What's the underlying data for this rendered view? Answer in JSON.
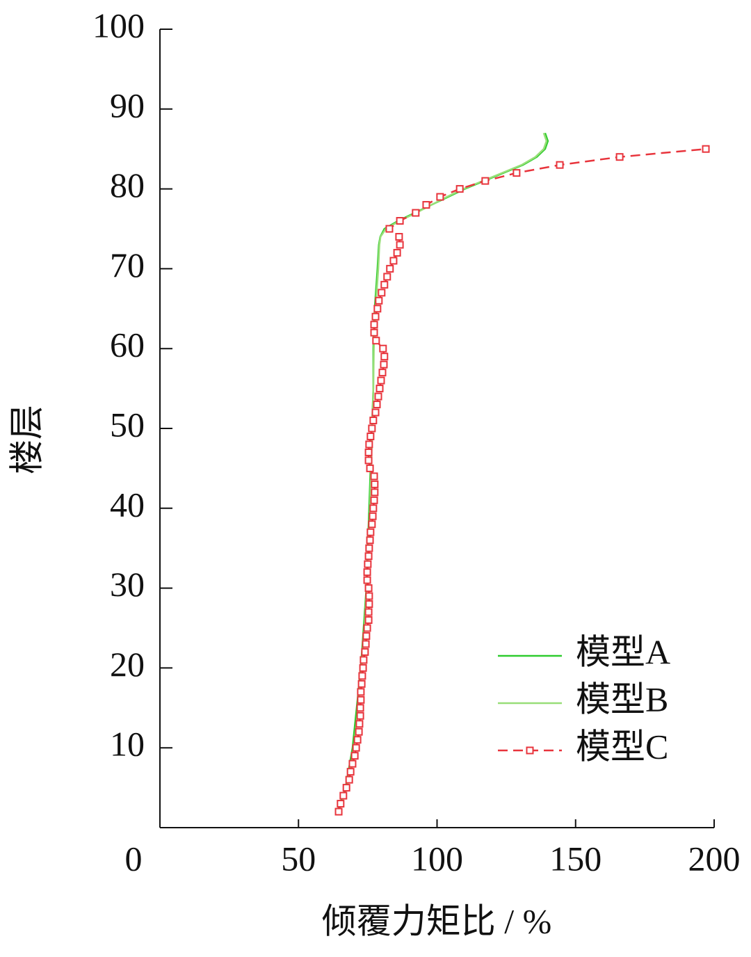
{
  "chart_data": {
    "type": "line",
    "xlabel": "倾覆力矩比 / %",
    "ylabel": "楼层",
    "xlim": [
      0,
      200
    ],
    "xticks": [
      0,
      50,
      100,
      150,
      200
    ],
    "ylim": [
      0,
      100
    ],
    "yticks": [
      10,
      20,
      30,
      40,
      50,
      60,
      70,
      80,
      90,
      100
    ],
    "legend": "lower right",
    "series": [
      {
        "name": "模型A",
        "color": "#2ecc2e",
        "dashed": false,
        "marker": false,
        "y": [
          2,
          5,
          10,
          15,
          20,
          25,
          30,
          35,
          40,
          45,
          50,
          55,
          60,
          65,
          70,
          73,
          74,
          75,
          76,
          77,
          78,
          79,
          80,
          81,
          82,
          83,
          84,
          85,
          86,
          87
        ],
        "x": [
          64,
          67,
          69.5,
          71,
          72.5,
          73.5,
          74.5,
          75,
          75.5,
          76,
          76.5,
          77,
          77,
          77.5,
          78.5,
          79,
          79.5,
          81,
          86,
          92,
          98,
          104,
          110,
          117,
          124,
          131,
          136,
          139,
          140,
          139
        ]
      },
      {
        "name": "模型B",
        "color": "#98de78",
        "dashed": false,
        "marker": false,
        "y": [
          2,
          5,
          10,
          15,
          20,
          25,
          30,
          35,
          40,
          45,
          50,
          55,
          60,
          65,
          70,
          73,
          74,
          75,
          76,
          77,
          78,
          79,
          80,
          81,
          82,
          83,
          84,
          85,
          86,
          87
        ],
        "x": [
          64.5,
          67.5,
          70,
          71.5,
          72.8,
          73.8,
          74.6,
          75.2,
          75.8,
          76.2,
          76.6,
          77,
          77.2,
          77.8,
          78.8,
          79.2,
          79.6,
          81.5,
          86.5,
          92.5,
          98,
          103.5,
          109.5,
          116.5,
          123.5,
          130.5,
          135.5,
          138.5,
          139.5,
          138.5
        ]
      },
      {
        "name": "模型C",
        "color": "#e8343c",
        "dashed": true,
        "marker": true,
        "y": [
          2,
          3,
          4,
          5,
          6,
          7,
          8,
          9,
          10,
          11,
          12,
          13,
          14,
          15,
          16,
          17,
          18,
          19,
          20,
          21,
          22,
          23,
          24,
          25,
          26,
          27,
          28,
          29,
          30,
          31,
          32,
          33,
          34,
          35,
          36,
          37,
          38,
          39,
          40,
          41,
          42,
          43,
          44,
          45,
          46,
          47,
          48,
          49,
          50,
          51,
          52,
          53,
          54,
          55,
          56,
          57,
          58,
          59,
          60,
          61,
          62,
          63,
          64,
          65,
          66,
          67,
          68,
          69,
          70,
          71,
          72,
          73,
          74,
          75,
          76,
          77,
          78,
          79,
          80,
          81,
          82,
          83,
          84,
          85
        ],
        "x": [
          64.5,
          65.2,
          66.2,
          67.3,
          68.3,
          68.8,
          69.5,
          70.3,
          70.8,
          71.3,
          71.8,
          72,
          72.3,
          72.3,
          72.5,
          72.5,
          72.8,
          73,
          73.3,
          73.5,
          74,
          74.3,
          74.5,
          74.8,
          75.3,
          75.3,
          75.5,
          75.5,
          75.3,
          74.8,
          74.8,
          75,
          75.3,
          75.5,
          75.8,
          76,
          76.5,
          76.8,
          77,
          77.3,
          77.5,
          77.5,
          77.3,
          75.8,
          75.3,
          75.3,
          75.5,
          76,
          76.5,
          77,
          77.8,
          78.3,
          78.8,
          79.3,
          79.8,
          80.3,
          80.8,
          81,
          80.5,
          78,
          77.3,
          77.3,
          77.8,
          78.5,
          79,
          80,
          81,
          82,
          83,
          84.3,
          85.6,
          86.6,
          86.3,
          82.8,
          86.6,
          92.3,
          96.1,
          101.1,
          108.2,
          117.4,
          128.7,
          144.3,
          165.9,
          197
        ]
      }
    ]
  }
}
